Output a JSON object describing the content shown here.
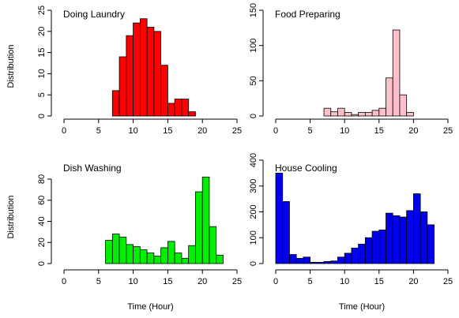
{
  "chart_data": [
    {
      "type": "bar",
      "title": "Doing Laundry",
      "ylabel": "Distribution",
      "xlabel": "",
      "xlim": [
        0,
        25
      ],
      "ylim": [
        0,
        25
      ],
      "x_ticks": [
        "0",
        "5",
        "10",
        "15",
        "20",
        "25"
      ],
      "y_ticks": [
        "0",
        "5",
        "10",
        "15",
        "20",
        "25"
      ],
      "bin_width": 1,
      "bin_starts": [
        7,
        8,
        9,
        10,
        11,
        12,
        13,
        14,
        15,
        16,
        17,
        18
      ],
      "values": [
        6,
        14,
        19,
        22,
        23,
        21,
        20,
        12,
        3,
        4,
        4,
        1
      ],
      "color": "#ff0000"
    },
    {
      "type": "bar",
      "title": "Food Preparing",
      "ylabel": "",
      "xlabel": "",
      "xlim": [
        0,
        25
      ],
      "ylim": [
        0,
        150
      ],
      "x_ticks": [
        "0",
        "5",
        "10",
        "15",
        "20",
        "25"
      ],
      "y_ticks": [
        "0",
        "50",
        "100",
        "150"
      ],
      "bin_width": 1,
      "bin_starts": [
        7,
        8,
        9,
        10,
        11,
        12,
        13,
        14,
        15,
        16,
        17,
        18,
        19
      ],
      "values": [
        11,
        6,
        11,
        5,
        2,
        5,
        5,
        8,
        11,
        54,
        122,
        30,
        5
      ],
      "color": "#ffc0cb"
    },
    {
      "type": "bar",
      "title": "Dish Washing",
      "ylabel": "Distribution",
      "xlabel": "Time (Hour)",
      "xlim": [
        0,
        25
      ],
      "ylim": [
        0,
        95
      ],
      "x_ticks": [
        "0",
        "5",
        "10",
        "15",
        "20",
        "25"
      ],
      "y_ticks": [
        "0",
        "20",
        "40",
        "60",
        "80"
      ],
      "bin_width": 1,
      "bin_starts": [
        6,
        7,
        8,
        9,
        10,
        11,
        12,
        13,
        14,
        15,
        16,
        17,
        18,
        19,
        20,
        21,
        22
      ],
      "values": [
        22,
        28,
        25,
        18,
        16,
        13,
        10,
        7,
        15,
        21,
        10,
        5,
        17,
        68,
        82,
        35,
        8
      ],
      "color": "#00ee00"
    },
    {
      "type": "bar",
      "title": "House Cooling",
      "ylabel": "",
      "xlabel": "Time (Hour)",
      "xlim": [
        0,
        25
      ],
      "ylim": [
        0,
        400
      ],
      "x_ticks": [
        "0",
        "5",
        "10",
        "15",
        "20",
        "25"
      ],
      "y_ticks": [
        "0",
        "100",
        "200",
        "300",
        "400"
      ],
      "bin_width": 1,
      "bin_starts": [
        0,
        1,
        2,
        3,
        4,
        5,
        6,
        7,
        8,
        9,
        10,
        11,
        12,
        13,
        14,
        15,
        16,
        17,
        18,
        19,
        20,
        21,
        22
      ],
      "values": [
        350,
        240,
        35,
        20,
        25,
        5,
        5,
        8,
        10,
        25,
        40,
        60,
        75,
        100,
        125,
        130,
        195,
        185,
        180,
        205,
        270,
        200,
        150
      ],
      "color": "#0000ee"
    }
  ]
}
